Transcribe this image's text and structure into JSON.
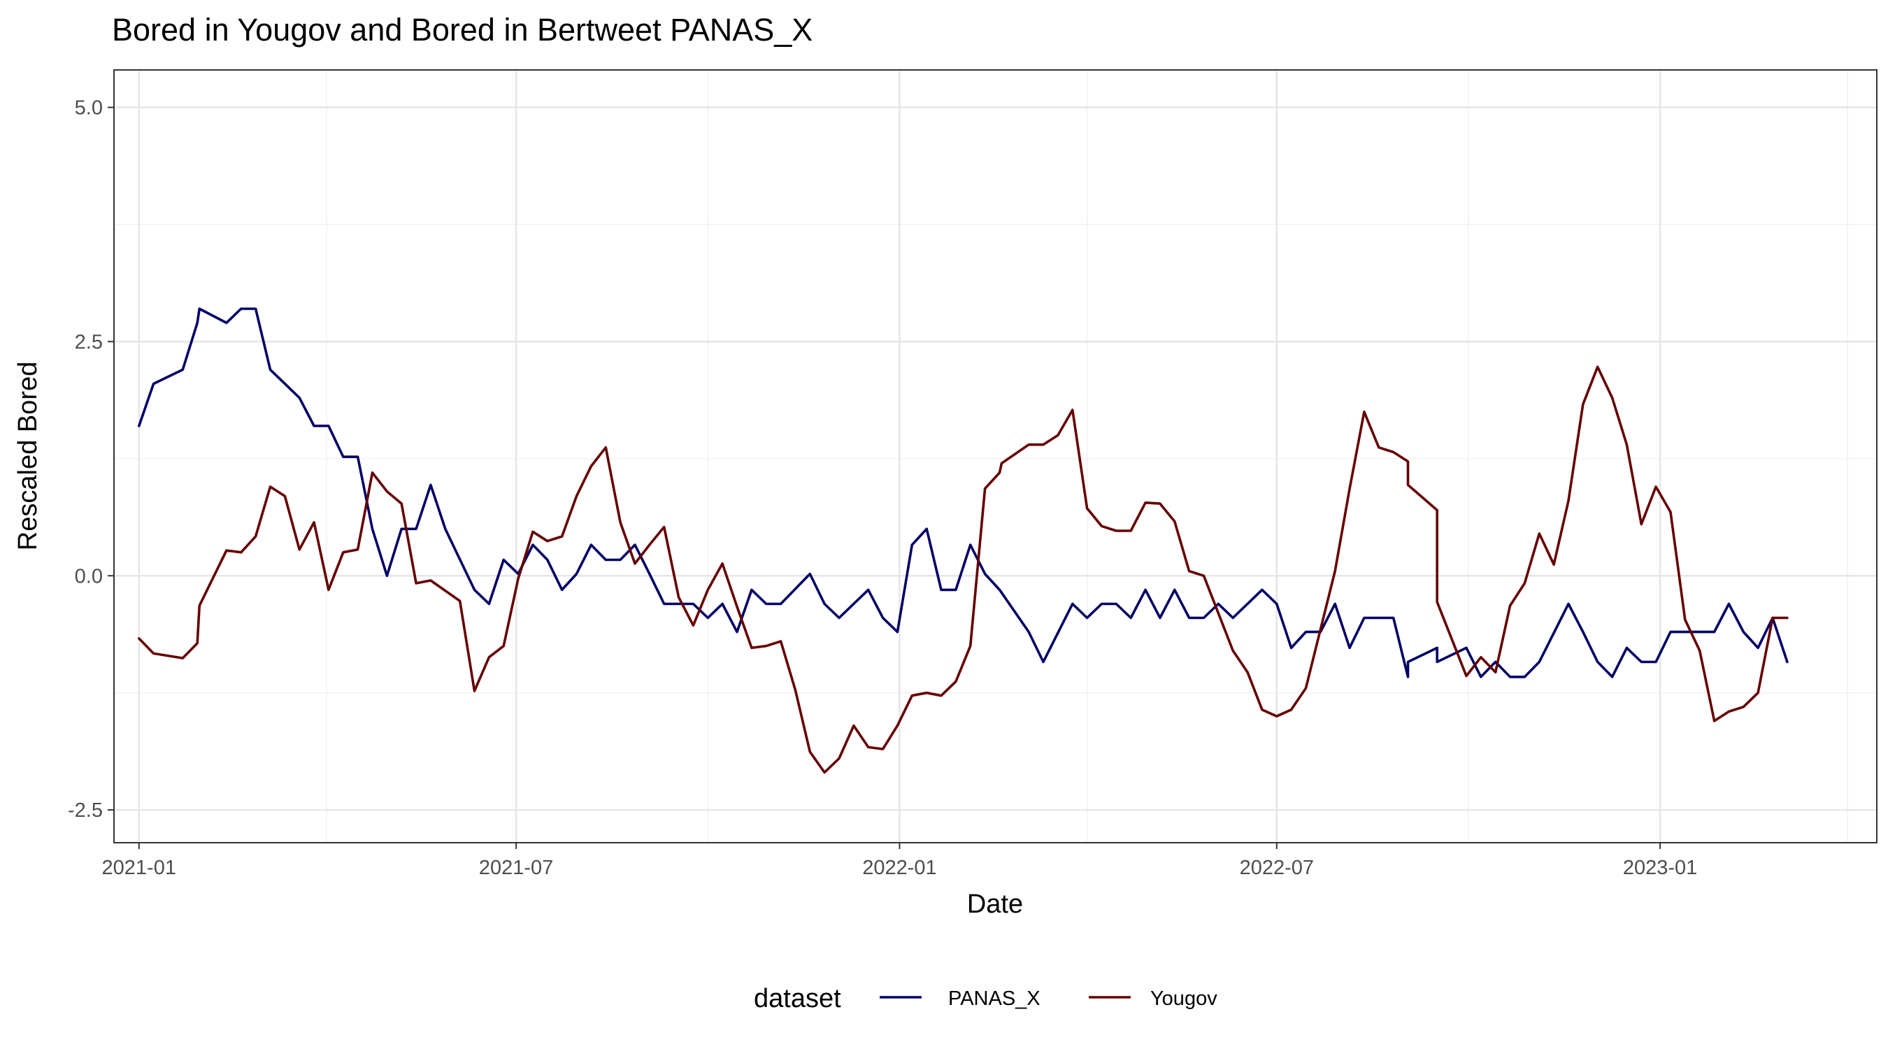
{
  "chart_data": {
    "type": "line",
    "title": "Bored  in Yougov and  Bored  in Bertweet   PANAS_X",
    "xlabel": "Date",
    "ylabel": "Rescaled  Bored",
    "x_tick_labels": [
      "2021-01",
      "2021-07",
      "2022-01",
      "2022-07",
      "2023-01"
    ],
    "y_tick_labels": [
      "-2.5",
      "0.0",
      "2.5",
      "5.0"
    ],
    "y_ticks": [
      -2.5,
      0.0,
      2.5,
      5.0
    ],
    "ylim": [
      -2.85,
      5.4
    ],
    "xlim": [
      "2020-12-20",
      "2023-04-15"
    ],
    "grid": true,
    "legend": {
      "title": "dataset",
      "position": "bottom",
      "entries": [
        {
          "label": "PANAS_X",
          "color": "#000066"
        },
        {
          "label": "Yougov",
          "color": "#660000"
        }
      ]
    },
    "series": [
      {
        "name": "PANAS_X",
        "color": "#000066",
        "points": [
          [
            "2021-01-01",
            1.6
          ],
          [
            "2021-01-08",
            2.05
          ],
          [
            "2021-01-22",
            2.2
          ],
          [
            "2021-01-29",
            2.7
          ],
          [
            "2021-01-30",
            2.85
          ],
          [
            "2021-02-12",
            2.7
          ],
          [
            "2021-02-19",
            2.85
          ],
          [
            "2021-02-26",
            2.85
          ],
          [
            "2021-03-05",
            2.2
          ],
          [
            "2021-03-19",
            1.9
          ],
          [
            "2021-03-26",
            1.6
          ],
          [
            "2021-04-02",
            1.6
          ],
          [
            "2021-04-09",
            1.27
          ],
          [
            "2021-04-16",
            1.27
          ],
          [
            "2021-04-23",
            0.5
          ],
          [
            "2021-04-30",
            0.0
          ],
          [
            "2021-05-07",
            0.5
          ],
          [
            "2021-05-14",
            0.5
          ],
          [
            "2021-05-21",
            0.97
          ],
          [
            "2021-05-28",
            0.5
          ],
          [
            "2021-06-11",
            -0.15
          ],
          [
            "2021-06-18",
            -0.3
          ],
          [
            "2021-06-25",
            0.17
          ],
          [
            "2021-07-02",
            0.02
          ],
          [
            "2021-07-09",
            0.33
          ],
          [
            "2021-07-16",
            0.17
          ],
          [
            "2021-07-23",
            -0.15
          ],
          [
            "2021-07-30",
            0.02
          ],
          [
            "2021-08-06",
            0.33
          ],
          [
            "2021-08-13",
            0.17
          ],
          [
            "2021-08-20",
            0.17
          ],
          [
            "2021-08-27",
            0.33
          ],
          [
            "2021-09-03",
            0.02
          ],
          [
            "2021-09-10",
            -0.3
          ],
          [
            "2021-09-24",
            -0.3
          ],
          [
            "2021-10-01",
            -0.45
          ],
          [
            "2021-10-08",
            -0.3
          ],
          [
            "2021-10-15",
            -0.6
          ],
          [
            "2021-10-22",
            -0.15
          ],
          [
            "2021-10-29",
            -0.3
          ],
          [
            "2021-11-05",
            -0.3
          ],
          [
            "2021-11-19",
            0.02
          ],
          [
            "2021-11-26",
            -0.3
          ],
          [
            "2021-12-03",
            -0.45
          ],
          [
            "2021-12-17",
            -0.15
          ],
          [
            "2021-12-24",
            -0.45
          ],
          [
            "2021-12-31",
            -0.6
          ],
          [
            "2022-01-07",
            0.33
          ],
          [
            "2022-01-14",
            0.5
          ],
          [
            "2022-01-21",
            -0.15
          ],
          [
            "2022-01-28",
            -0.15
          ],
          [
            "2022-02-04",
            0.33
          ],
          [
            "2022-02-11",
            0.02
          ],
          [
            "2022-02-18",
            -0.15
          ],
          [
            "2022-03-04",
            -0.6
          ],
          [
            "2022-03-11",
            -0.92
          ],
          [
            "2022-03-25",
            -0.3
          ],
          [
            "2022-04-01",
            -0.45
          ],
          [
            "2022-04-08",
            -0.3
          ],
          [
            "2022-04-15",
            -0.3
          ],
          [
            "2022-04-22",
            -0.45
          ],
          [
            "2022-04-29",
            -0.15
          ],
          [
            "2022-05-06",
            -0.45
          ],
          [
            "2022-05-13",
            -0.15
          ],
          [
            "2022-05-20",
            -0.45
          ],
          [
            "2022-05-27",
            -0.45
          ],
          [
            "2022-06-03",
            -0.3
          ],
          [
            "2022-06-10",
            -0.45
          ],
          [
            "2022-06-24",
            -0.15
          ],
          [
            "2022-07-01",
            -0.3
          ],
          [
            "2022-07-08",
            -0.77
          ],
          [
            "2022-07-15",
            -0.6
          ],
          [
            "2022-07-22",
            -0.6
          ],
          [
            "2022-07-29",
            -0.3
          ],
          [
            "2022-08-05",
            -0.77
          ],
          [
            "2022-08-12",
            -0.45
          ],
          [
            "2022-08-26",
            -0.45
          ],
          [
            "2022-09-02",
            -1.08
          ],
          [
            "2022-09-02",
            -0.92
          ],
          [
            "2022-09-16",
            -0.77
          ],
          [
            "2022-09-16",
            -0.92
          ],
          [
            "2022-09-30",
            -0.77
          ],
          [
            "2022-10-07",
            -1.08
          ],
          [
            "2022-10-14",
            -0.92
          ],
          [
            "2022-10-21",
            -1.08
          ],
          [
            "2022-10-28",
            -1.08
          ],
          [
            "2022-11-04",
            -0.92
          ],
          [
            "2022-11-18",
            -0.3
          ],
          [
            "2022-11-25",
            -0.6
          ],
          [
            "2022-12-02",
            -0.92
          ],
          [
            "2022-12-09",
            -1.08
          ],
          [
            "2022-12-16",
            -0.77
          ],
          [
            "2022-12-23",
            -0.92
          ],
          [
            "2022-12-30",
            -0.92
          ],
          [
            "2023-01-06",
            -0.6
          ],
          [
            "2023-01-13",
            -0.6
          ],
          [
            "2023-01-20",
            -0.6
          ],
          [
            "2023-01-27",
            -0.6
          ],
          [
            "2023-02-03",
            -0.3
          ],
          [
            "2023-02-10",
            -0.6
          ],
          [
            "2023-02-17",
            -0.77
          ],
          [
            "2023-02-24",
            -0.45
          ],
          [
            "2023-03-03",
            -0.92
          ]
        ]
      },
      {
        "name": "Yougov",
        "color": "#660000",
        "points": [
          [
            "2021-01-01",
            -0.67
          ],
          [
            "2021-01-08",
            -0.83
          ],
          [
            "2021-01-22",
            -0.88
          ],
          [
            "2021-01-29",
            -0.72
          ],
          [
            "2021-01-30",
            -0.32
          ],
          [
            "2021-02-12",
            0.27
          ],
          [
            "2021-02-19",
            0.25
          ],
          [
            "2021-02-26",
            0.42
          ],
          [
            "2021-03-05",
            0.95
          ],
          [
            "2021-03-12",
            0.85
          ],
          [
            "2021-03-19",
            0.28
          ],
          [
            "2021-03-26",
            0.57
          ],
          [
            "2021-04-02",
            -0.15
          ],
          [
            "2021-04-09",
            0.25
          ],
          [
            "2021-04-16",
            0.28
          ],
          [
            "2021-04-23",
            1.1
          ],
          [
            "2021-04-30",
            0.9
          ],
          [
            "2021-05-07",
            0.77
          ],
          [
            "2021-05-14",
            -0.08
          ],
          [
            "2021-05-21",
            -0.05
          ],
          [
            "2021-06-04",
            -0.27
          ],
          [
            "2021-06-11",
            -1.23
          ],
          [
            "2021-06-18",
            -0.87
          ],
          [
            "2021-06-25",
            -0.75
          ],
          [
            "2021-07-02",
            -0.03
          ],
          [
            "2021-07-09",
            0.47
          ],
          [
            "2021-07-16",
            0.37
          ],
          [
            "2021-07-23",
            0.42
          ],
          [
            "2021-07-30",
            0.85
          ],
          [
            "2021-08-06",
            1.17
          ],
          [
            "2021-08-13",
            1.37
          ],
          [
            "2021-08-20",
            0.57
          ],
          [
            "2021-08-27",
            0.13
          ],
          [
            "2021-09-03",
            0.33
          ],
          [
            "2021-09-10",
            0.52
          ],
          [
            "2021-09-17",
            -0.23
          ],
          [
            "2021-09-24",
            -0.53
          ],
          [
            "2021-10-01",
            -0.15
          ],
          [
            "2021-10-08",
            0.13
          ],
          [
            "2021-10-15",
            -0.33
          ],
          [
            "2021-10-22",
            -0.77
          ],
          [
            "2021-10-29",
            -0.75
          ],
          [
            "2021-11-05",
            -0.7
          ],
          [
            "2021-11-12",
            -1.22
          ],
          [
            "2021-11-19",
            -1.88
          ],
          [
            "2021-11-26",
            -2.1
          ],
          [
            "2021-12-03",
            -1.95
          ],
          [
            "2021-12-10",
            -1.6
          ],
          [
            "2021-12-17",
            -1.83
          ],
          [
            "2021-12-24",
            -1.85
          ],
          [
            "2021-12-31",
            -1.6
          ],
          [
            "2022-01-07",
            -1.28
          ],
          [
            "2022-01-14",
            -1.25
          ],
          [
            "2022-01-21",
            -1.28
          ],
          [
            "2022-01-28",
            -1.13
          ],
          [
            "2022-02-04",
            -0.75
          ],
          [
            "2022-02-11",
            0.93
          ],
          [
            "2022-02-18",
            1.1
          ],
          [
            "2022-02-19",
            1.2
          ],
          [
            "2022-03-04",
            1.4
          ],
          [
            "2022-03-11",
            1.4
          ],
          [
            "2022-03-18",
            1.5
          ],
          [
            "2022-03-25",
            1.77
          ],
          [
            "2022-04-01",
            0.72
          ],
          [
            "2022-04-08",
            0.53
          ],
          [
            "2022-04-15",
            0.48
          ],
          [
            "2022-04-22",
            0.48
          ],
          [
            "2022-04-29",
            0.78
          ],
          [
            "2022-05-06",
            0.77
          ],
          [
            "2022-05-13",
            0.58
          ],
          [
            "2022-05-20",
            0.05
          ],
          [
            "2022-05-27",
            0.0
          ],
          [
            "2022-06-10",
            -0.8
          ],
          [
            "2022-06-17",
            -1.03
          ],
          [
            "2022-06-24",
            -1.43
          ],
          [
            "2022-07-01",
            -1.5
          ],
          [
            "2022-07-08",
            -1.43
          ],
          [
            "2022-07-15",
            -1.2
          ],
          [
            "2022-07-29",
            0.05
          ],
          [
            "2022-08-05",
            0.93
          ],
          [
            "2022-08-12",
            1.75
          ],
          [
            "2022-08-19",
            1.37
          ],
          [
            "2022-08-26",
            1.32
          ],
          [
            "2022-09-02",
            1.22
          ],
          [
            "2022-09-02",
            0.97
          ],
          [
            "2022-09-16",
            0.7
          ],
          [
            "2022-09-16",
            -0.28
          ],
          [
            "2022-09-30",
            -1.07
          ],
          [
            "2022-10-07",
            -0.87
          ],
          [
            "2022-10-14",
            -1.03
          ],
          [
            "2022-10-21",
            -0.32
          ],
          [
            "2022-10-28",
            -0.08
          ],
          [
            "2022-11-04",
            0.45
          ],
          [
            "2022-11-11",
            0.12
          ],
          [
            "2022-11-18",
            0.8
          ],
          [
            "2022-11-25",
            1.83
          ],
          [
            "2022-12-02",
            2.23
          ],
          [
            "2022-12-09",
            1.9
          ],
          [
            "2022-12-16",
            1.4
          ],
          [
            "2022-12-23",
            0.55
          ],
          [
            "2022-12-30",
            0.95
          ],
          [
            "2023-01-06",
            0.68
          ],
          [
            "2023-01-13",
            -0.47
          ],
          [
            "2023-01-20",
            -0.8
          ],
          [
            "2023-01-27",
            -1.55
          ],
          [
            "2023-02-03",
            -1.45
          ],
          [
            "2023-02-10",
            -1.4
          ],
          [
            "2023-02-17",
            -1.25
          ],
          [
            "2023-02-24",
            -0.45
          ],
          [
            "2023-03-03",
            -0.45
          ]
        ]
      }
    ]
  }
}
